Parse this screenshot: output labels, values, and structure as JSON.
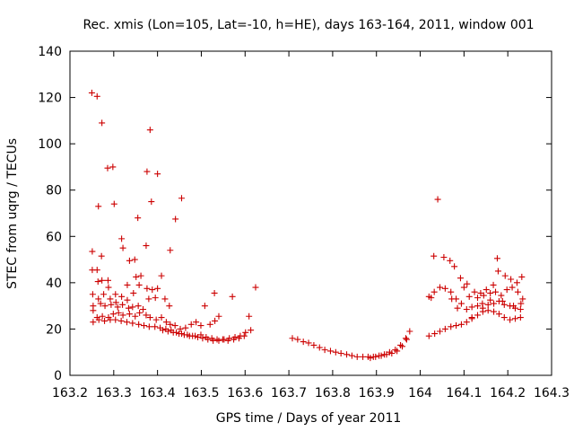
{
  "chart_data": {
    "type": "scatter",
    "title": "Rec. xmis (Lon=105, Lat=-10, h=HE), days 163-164, 2011, window 001",
    "xlabel": "GPS time / Days of year 2011",
    "ylabel": "STEC from uqrg / TECUs",
    "xlim": [
      163.2,
      164.3
    ],
    "ylim": [
      0,
      140
    ],
    "xticks": [
      "163.2",
      "163.3",
      "163.4",
      "163.5",
      "163.6",
      "163.7",
      "163.8",
      "163.9",
      "164",
      "164.1",
      "164.2",
      "164.3"
    ],
    "yticks": [
      "0",
      "20",
      "40",
      "60",
      "80",
      "100",
      "120",
      "140"
    ],
    "grid": false,
    "legend": "none",
    "marker": "plus",
    "marker_color": "#cc0000",
    "series": [
      {
        "points": [
          [
            163.25,
            122
          ],
          [
            163.262,
            120.5
          ],
          [
            163.273,
            109
          ],
          [
            163.286,
            89.5
          ],
          [
            163.298,
            90
          ],
          [
            163.301,
            74
          ],
          [
            163.383,
            106
          ],
          [
            163.376,
            88
          ],
          [
            163.4,
            87
          ],
          [
            163.265,
            73
          ],
          [
            163.386,
            75
          ],
          [
            163.455,
            76.5
          ],
          [
            163.441,
            67.5
          ],
          [
            163.355,
            68
          ],
          [
            163.318,
            59
          ],
          [
            163.321,
            55
          ],
          [
            163.374,
            56
          ],
          [
            163.429,
            54
          ],
          [
            163.251,
            53.5
          ],
          [
            163.336,
            49.5
          ],
          [
            163.348,
            50
          ],
          [
            163.272,
            51.5
          ],
          [
            163.251,
            45.5
          ],
          [
            163.262,
            45.5
          ],
          [
            163.351,
            42.5
          ],
          [
            163.362,
            43
          ],
          [
            163.409,
            43
          ],
          [
            163.264,
            40.5
          ],
          [
            163.273,
            41
          ],
          [
            163.287,
            41
          ],
          [
            163.331,
            39
          ],
          [
            163.358,
            39
          ],
          [
            163.376,
            37.5
          ],
          [
            163.288,
            38
          ],
          [
            163.304,
            35
          ],
          [
            163.345,
            35.5
          ],
          [
            163.388,
            37
          ],
          [
            163.4,
            37.5
          ],
          [
            163.53,
            35.5
          ],
          [
            163.571,
            34
          ],
          [
            163.252,
            35
          ],
          [
            163.265,
            33
          ],
          [
            163.277,
            35
          ],
          [
            163.318,
            34
          ],
          [
            163.331,
            32.5
          ],
          [
            163.292,
            33
          ],
          [
            163.305,
            31.5
          ],
          [
            163.38,
            33
          ],
          [
            163.395,
            33.5
          ],
          [
            163.417,
            33
          ],
          [
            163.427,
            30
          ],
          [
            163.508,
            30
          ],
          [
            163.54,
            25.5
          ],
          [
            163.609,
            25.5
          ],
          [
            163.624,
            38
          ],
          [
            163.253,
            30
          ],
          [
            163.27,
            31
          ],
          [
            163.28,
            30
          ],
          [
            163.294,
            30.5
          ],
          [
            163.309,
            29.5
          ],
          [
            163.32,
            30.5
          ],
          [
            163.334,
            29
          ],
          [
            163.343,
            29.5
          ],
          [
            163.356,
            30
          ],
          [
            163.367,
            28.5
          ],
          [
            163.253,
            28
          ],
          [
            163.262,
            25
          ],
          [
            163.274,
            25.5
          ],
          [
            163.288,
            25
          ],
          [
            163.299,
            26.5
          ],
          [
            163.311,
            27
          ],
          [
            163.321,
            26
          ],
          [
            163.336,
            26.5
          ],
          [
            163.349,
            25.5
          ],
          [
            163.359,
            27
          ],
          [
            163.374,
            26
          ],
          [
            163.383,
            25
          ],
          [
            163.397,
            24
          ],
          [
            163.409,
            25
          ],
          [
            163.42,
            23
          ],
          [
            163.429,
            22
          ],
          [
            163.44,
            21.5
          ],
          [
            163.452,
            20
          ],
          [
            163.464,
            20.5
          ],
          [
            163.477,
            22
          ],
          [
            163.488,
            23
          ],
          [
            163.499,
            21.5
          ],
          [
            163.52,
            22
          ],
          [
            163.531,
            23.5
          ],
          [
            163.253,
            23
          ],
          [
            163.266,
            24
          ],
          [
            163.279,
            23.5
          ],
          [
            163.292,
            24
          ],
          [
            163.304,
            24
          ],
          [
            163.317,
            23.5
          ],
          [
            163.33,
            23
          ],
          [
            163.343,
            22.5
          ],
          [
            163.357,
            22
          ],
          [
            163.369,
            21.5
          ],
          [
            163.381,
            21
          ],
          [
            163.394,
            21
          ],
          [
            163.406,
            20.5
          ],
          [
            163.419,
            20
          ],
          [
            163.431,
            19.5
          ],
          [
            163.443,
            18.5
          ],
          [
            163.455,
            18
          ],
          [
            163.468,
            17.5
          ],
          [
            163.48,
            17
          ],
          [
            163.492,
            16.5
          ],
          [
            163.503,
            16
          ],
          [
            163.515,
            15.5
          ],
          [
            163.527,
            15
          ],
          [
            163.54,
            15
          ],
          [
            163.552,
            15.5
          ],
          [
            163.564,
            16
          ],
          [
            163.577,
            16.5
          ],
          [
            163.589,
            17
          ],
          [
            163.601,
            18.5
          ],
          [
            163.613,
            19.5
          ],
          [
            163.412,
            19.5
          ],
          [
            163.424,
            19
          ],
          [
            163.436,
            18.5
          ],
          [
            163.449,
            18
          ],
          [
            163.461,
            17.5
          ],
          [
            163.473,
            17
          ],
          [
            163.486,
            17
          ],
          [
            163.499,
            17.5
          ],
          [
            163.511,
            16.5
          ],
          [
            163.524,
            16
          ],
          [
            163.536,
            15.5
          ],
          [
            163.549,
            15.5
          ],
          [
            163.561,
            15
          ],
          [
            163.574,
            15.5
          ],
          [
            163.586,
            16
          ],
          [
            163.598,
            17
          ],
          [
            163.708,
            16
          ],
          [
            163.72,
            15.5
          ],
          [
            163.733,
            14.5
          ],
          [
            163.745,
            14
          ],
          [
            163.757,
            13
          ],
          [
            163.77,
            12
          ],
          [
            163.782,
            11
          ],
          [
            163.795,
            10.5
          ],
          [
            163.807,
            10
          ],
          [
            163.819,
            9.5
          ],
          [
            163.832,
            9
          ],
          [
            163.844,
            8.5
          ],
          [
            163.856,
            8
          ],
          [
            163.869,
            8
          ],
          [
            163.881,
            8
          ],
          [
            163.893,
            8
          ],
          [
            163.906,
            8.5
          ],
          [
            163.918,
            9
          ],
          [
            163.93,
            10
          ],
          [
            163.943,
            11
          ],
          [
            163.955,
            13
          ],
          [
            163.967,
            16
          ],
          [
            163.976,
            19
          ],
          [
            163.886,
            7.5
          ],
          [
            163.898,
            8
          ],
          [
            163.911,
            8.5
          ],
          [
            163.923,
            9
          ],
          [
            163.935,
            9.5
          ],
          [
            163.947,
            10.5
          ],
          [
            163.959,
            12.5
          ],
          [
            163.969,
            15.5
          ],
          [
            164.02,
            17
          ],
          [
            164.033,
            18
          ],
          [
            164.045,
            19
          ],
          [
            164.057,
            20
          ],
          [
            164.07,
            21
          ],
          [
            164.082,
            21.5
          ],
          [
            164.094,
            22
          ],
          [
            164.106,
            23
          ],
          [
            164.118,
            24.5
          ],
          [
            164.131,
            26
          ],
          [
            164.143,
            27.5
          ],
          [
            164.155,
            28
          ],
          [
            164.168,
            27.5
          ],
          [
            164.18,
            26.5
          ],
          [
            164.192,
            25
          ],
          [
            164.205,
            24
          ],
          [
            164.217,
            24.5
          ],
          [
            164.229,
            25
          ],
          [
            164.02,
            34
          ],
          [
            164.032,
            36
          ],
          [
            164.045,
            38
          ],
          [
            164.057,
            37.5
          ],
          [
            164.07,
            36
          ],
          [
            164.082,
            33
          ],
          [
            164.094,
            31
          ],
          [
            164.106,
            28.5
          ],
          [
            164.118,
            29.5
          ],
          [
            164.131,
            30
          ],
          [
            164.143,
            29
          ],
          [
            164.155,
            30.5
          ],
          [
            164.168,
            31
          ],
          [
            164.18,
            32
          ],
          [
            164.192,
            30.5
          ],
          [
            164.205,
            30
          ],
          [
            164.217,
            29
          ],
          [
            164.229,
            28.5
          ],
          [
            164.031,
            51.5
          ],
          [
            164.054,
            51
          ],
          [
            164.068,
            49.5
          ],
          [
            164.078,
            47
          ],
          [
            164.04,
            76
          ],
          [
            164.092,
            42
          ],
          [
            164.107,
            39.5
          ],
          [
            164.124,
            36
          ],
          [
            164.138,
            35.5
          ],
          [
            164.151,
            37
          ],
          [
            164.167,
            39
          ],
          [
            164.178,
            45
          ],
          [
            164.176,
            50.5
          ],
          [
            164.194,
            43
          ],
          [
            164.207,
            41.5
          ],
          [
            164.221,
            40
          ],
          [
            164.232,
            42.5
          ],
          [
            164.1,
            38
          ],
          [
            164.112,
            34
          ],
          [
            164.131,
            33.5
          ],
          [
            164.145,
            34.5
          ],
          [
            164.16,
            35.5
          ],
          [
            164.172,
            36
          ],
          [
            164.185,
            34.5
          ],
          [
            164.198,
            37
          ],
          [
            164.21,
            38
          ],
          [
            164.223,
            36
          ],
          [
            164.234,
            33
          ],
          [
            164.025,
            33.5
          ],
          [
            164.072,
            33
          ],
          [
            164.085,
            29
          ],
          [
            164.118,
            25
          ],
          [
            164.142,
            31
          ],
          [
            164.16,
            32.5
          ],
          [
            164.188,
            32
          ],
          [
            164.213,
            30
          ],
          [
            164.23,
            31
          ]
        ]
      }
    ]
  }
}
